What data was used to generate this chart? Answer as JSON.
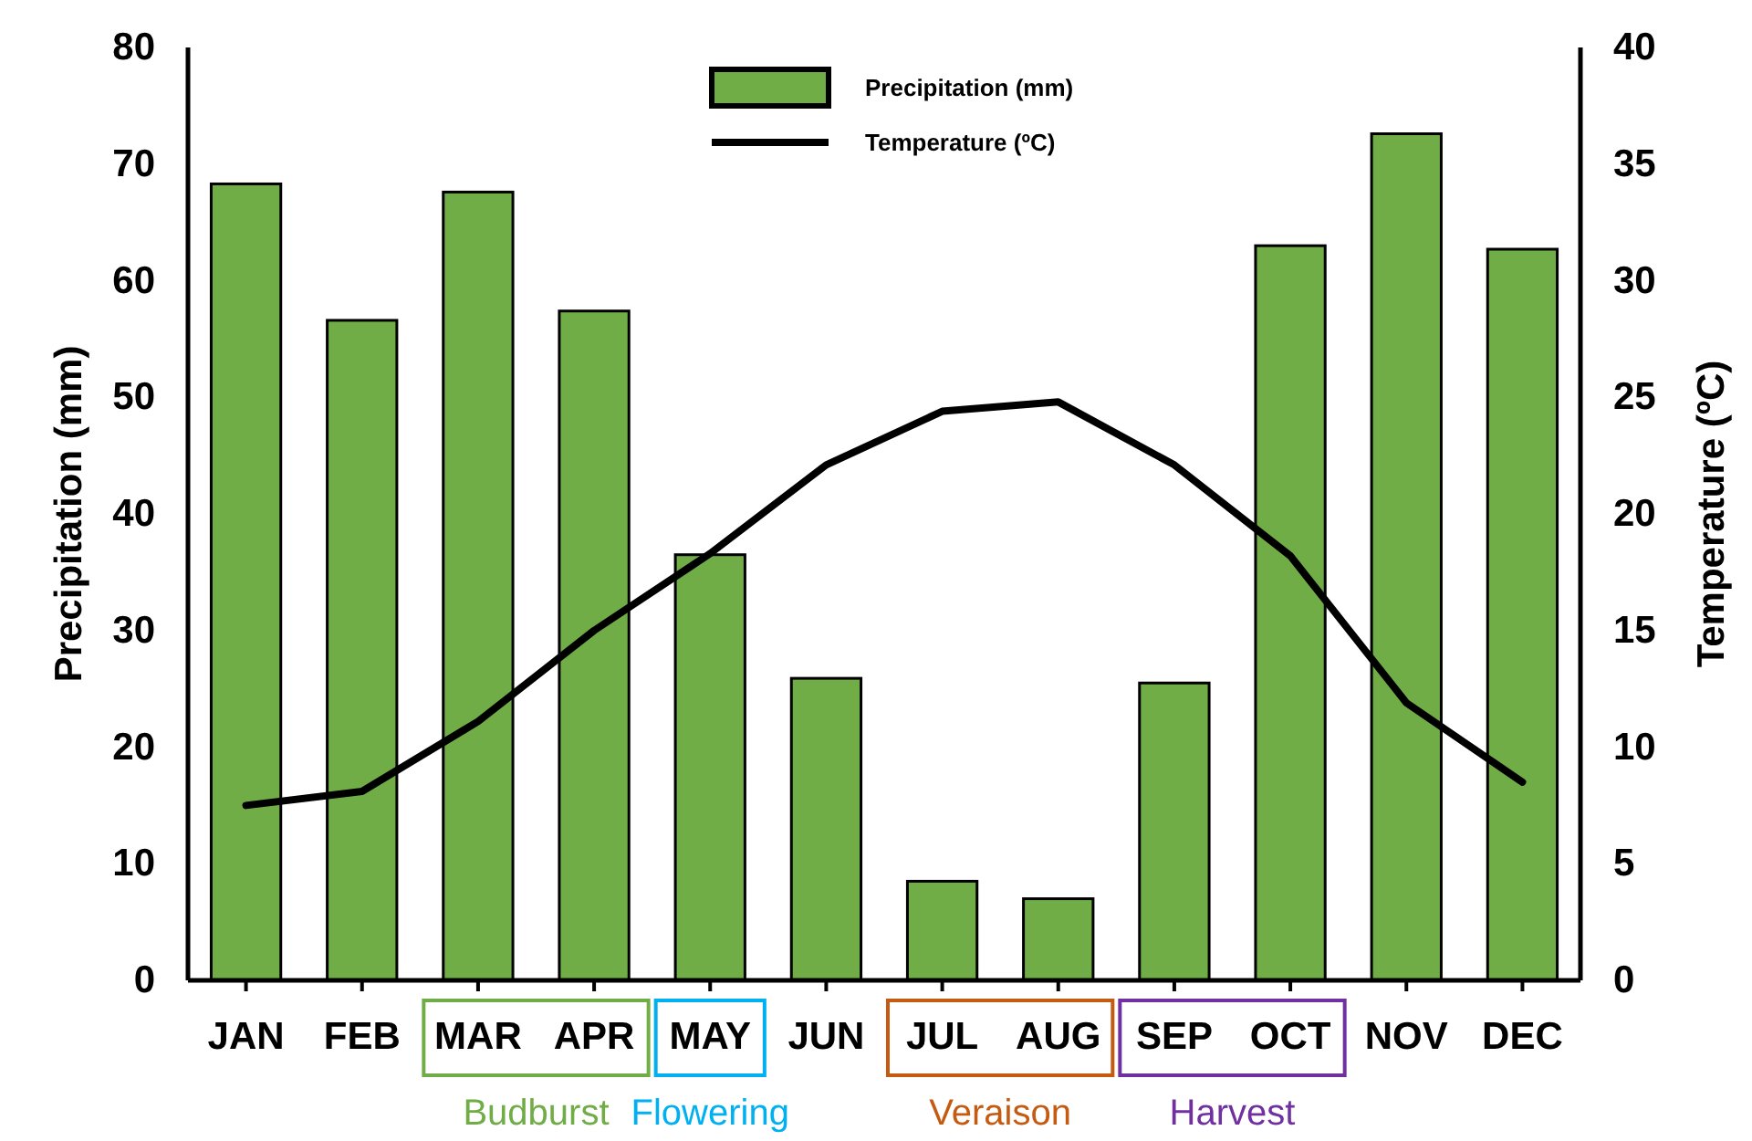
{
  "chart_data": {
    "type": "bar",
    "categories": [
      "JAN",
      "FEB",
      "MAR",
      "APR",
      "MAY",
      "JUN",
      "JUL",
      "AUG",
      "SEP",
      "OCT",
      "NOV",
      "DEC"
    ],
    "series": [
      {
        "name": "Precipitation (mm)",
        "color": "#70ad47",
        "values": [
          68.3,
          56.6,
          67.6,
          57.4,
          36.5,
          25.9,
          8.5,
          7.0,
          25.5,
          63.0,
          72.6,
          62.7
        ]
      },
      {
        "name": "Temperature (ºC)",
        "type": "line",
        "axis": "y2",
        "color": "#000000",
        "values": [
          7.5,
          8.1,
          11.1,
          15.0,
          18.3,
          22.1,
          24.4,
          24.8,
          22.1,
          18.2,
          11.9,
          8.5
        ]
      }
    ],
    "ylabel": "Precipitation (mm)",
    "y2label": "Temperature (ºC)",
    "ylim": [
      0,
      80
    ],
    "yticks": [
      0,
      10,
      20,
      30,
      40,
      50,
      60,
      70,
      80
    ],
    "y2lim": [
      0,
      40
    ],
    "y2ticks": [
      0,
      5,
      10,
      15,
      20,
      25,
      30,
      35,
      40
    ],
    "grid": false,
    "legend": "top",
    "marker": "none",
    "line_style": "solid",
    "annotations": [
      "Budburst",
      "Flowering",
      "Veraison",
      "Harvest"
    ]
  }
}
